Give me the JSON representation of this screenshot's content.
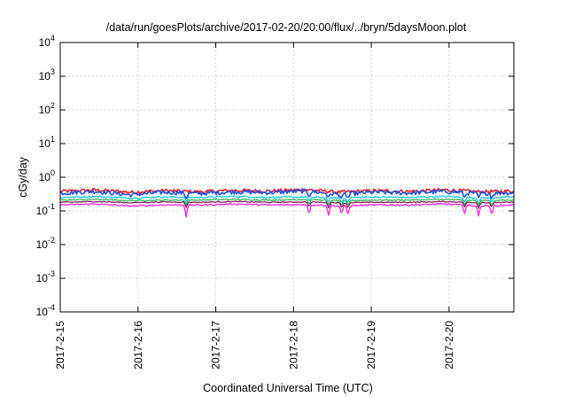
{
  "chart_data": {
    "type": "line",
    "title": "/data/run/goesPlots/archive/2017-02-20/20:00/flux/../bryn/5daysMoon.plot",
    "xlabel": "Coordinated Universal Time (UTC)",
    "ylabel": "cGy/day",
    "y_scale": "log",
    "ylim": [
      0.0001,
      10000
    ],
    "y_ticks": [
      {
        "value": 0.0001,
        "base": "10",
        "exp": "-4"
      },
      {
        "value": 0.001,
        "base": "10",
        "exp": "-3"
      },
      {
        "value": 0.01,
        "base": "10",
        "exp": "-2"
      },
      {
        "value": 0.1,
        "base": "10",
        "exp": "-1"
      },
      {
        "value": 1,
        "base": "10",
        "exp": "0"
      },
      {
        "value": 10,
        "base": "10",
        "exp": "1"
      },
      {
        "value": 100,
        "base": "10",
        "exp": "2"
      },
      {
        "value": 1000,
        "base": "10",
        "exp": "3"
      },
      {
        "value": 10000,
        "base": "10",
        "exp": "4"
      }
    ],
    "x_ticks": [
      "2017-2-15",
      "2017-2-16",
      "2017-2-17",
      "2017-2-18",
      "2017-2-19",
      "2017-2-20"
    ],
    "xlim": [
      "2017-02-15T00:00",
      "2017-02-20T20:00"
    ],
    "grid": true,
    "legend": "none",
    "series": [
      {
        "color": "#e8202a",
        "values": [
          0.38,
          0.42,
          0.36,
          0.4,
          0.37,
          0.41,
          0.39,
          0.43,
          0.36,
          0.4,
          0.38,
          0.42,
          0.37,
          0.39
        ]
      },
      {
        "color": "#2050e0",
        "values": [
          0.34,
          0.38,
          0.3,
          0.36,
          0.33,
          0.37,
          0.35,
          0.39,
          0.31,
          0.36,
          0.34,
          0.38,
          0.33,
          0.35
        ]
      },
      {
        "color": "#18c8e8",
        "values": [
          0.25,
          0.27,
          0.24,
          0.26,
          0.25,
          0.27,
          0.25,
          0.26,
          0.24,
          0.26,
          0.25,
          0.27,
          0.24,
          0.26
        ]
      },
      {
        "color": "#30b858",
        "values": [
          0.21,
          0.22,
          0.2,
          0.21,
          0.21,
          0.22,
          0.21,
          0.22,
          0.2,
          0.21,
          0.21,
          0.22,
          0.2,
          0.21
        ]
      },
      {
        "color": "#8a2060",
        "values": [
          0.18,
          0.19,
          0.175,
          0.185,
          0.18,
          0.19,
          0.18,
          0.185,
          0.175,
          0.18,
          0.18,
          0.19,
          0.175,
          0.18
        ]
      },
      {
        "color": "#ff20e0",
        "values": [
          0.15,
          0.16,
          0.14,
          0.15,
          0.15,
          0.16,
          0.15,
          0.155,
          0.14,
          0.15,
          0.15,
          0.16,
          0.14,
          0.15
        ]
      }
    ],
    "dips": [
      {
        "day": 1.62,
        "value": 0.065
      },
      {
        "day": 3.2,
        "value": 0.07
      },
      {
        "day": 3.45,
        "value": 0.07
      },
      {
        "day": 3.62,
        "value": 0.075
      },
      {
        "day": 3.7,
        "value": 0.07
      },
      {
        "day": 5.2,
        "value": 0.08
      },
      {
        "day": 5.38,
        "value": 0.07
      },
      {
        "day": 5.55,
        "value": 0.065
      }
    ]
  }
}
